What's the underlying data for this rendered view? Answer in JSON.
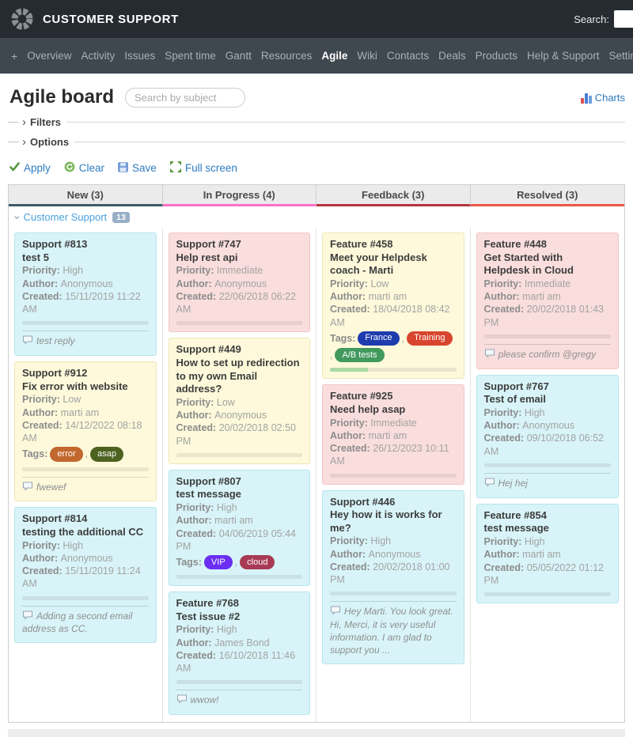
{
  "header": {
    "app_title": "CUSTOMER SUPPORT",
    "search_label": "Search:"
  },
  "nav": {
    "plus_label": "+",
    "active": "Agile",
    "items": [
      "Overview",
      "Activity",
      "Issues",
      "Spent time",
      "Gantt",
      "Resources",
      "Agile",
      "Wiki",
      "Contacts",
      "Deals",
      "Products",
      "Help & Support",
      "Settings"
    ]
  },
  "page": {
    "title": "Agile board",
    "search_placeholder": "Search by subject",
    "charts_label": "Charts",
    "filters_label": "Filters",
    "options_label": "Options"
  },
  "toolbar": {
    "apply_label": "Apply",
    "clear_label": "Clear",
    "save_label": "Save",
    "fullscreen_label": "Full screen"
  },
  "board": {
    "swimlane": {
      "title": "Customer Support",
      "count": "13"
    },
    "field_labels": {
      "priority": "Priority",
      "author": "Author",
      "created": "Created",
      "tags": "Tags"
    },
    "card_colors": {
      "cyan": {
        "bg": "#d8f4f8",
        "border": "#b7e5ec"
      },
      "yellow": {
        "bg": "#fdf9da",
        "border": "#eee6b8"
      },
      "pink": {
        "bg": "#f9dedd",
        "border": "#f0c6c5"
      }
    },
    "columns": [
      {
        "label": "New (3)",
        "accent": "#3f5a66",
        "cards": [
          {
            "id": "Support #813",
            "subject": "test 5",
            "priority": "High",
            "author": "Anonymous",
            "created": "15/11/2019 11:22 AM",
            "color": "cyan",
            "comment": "test reply"
          },
          {
            "id": "Support #912",
            "subject": "Fix error with website",
            "priority": "Low",
            "author": "marti am",
            "created": "14/12/2022 08:18 AM",
            "color": "yellow",
            "tags": [
              {
                "label": "error",
                "color": "#c2672e"
              },
              {
                "label": "asap",
                "color": "#4d6220"
              }
            ],
            "comment": "fwewef"
          },
          {
            "id": "Support #814",
            "subject": "testing the additional CC",
            "priority": "High",
            "author": "Anonymous",
            "created": "15/11/2019 11:24 AM",
            "color": "cyan",
            "comment": "Adding a second email address as CC."
          }
        ]
      },
      {
        "label": "In Progress (4)",
        "accent": "#ff6fc8",
        "cards": [
          {
            "id": "Support #747",
            "subject": "Help rest api",
            "priority": "Immediate",
            "author": "Anonymous",
            "created": "22/06/2018 06:22 AM",
            "color": "pink"
          },
          {
            "id": "Support #449",
            "subject": "How to set up redirection to my own Email address?",
            "priority": "Low",
            "author": "Anonymous",
            "created": "20/02/2018 02:50 PM",
            "color": "yellow"
          },
          {
            "id": "Support #807",
            "subject": "test message",
            "priority": "High",
            "author": "marti am",
            "created": "04/06/2019 05:44 PM",
            "color": "cyan",
            "tags": [
              {
                "label": "VIP",
                "color": "#6a2ff1"
              },
              {
                "label": "cloud",
                "color": "#a83a55"
              }
            ]
          },
          {
            "id": "Feature #768",
            "subject": "Test issue #2",
            "priority": "High",
            "author": "James Bond",
            "created": "16/10/2018 11:46 AM",
            "color": "cyan",
            "comment": "wwow!"
          }
        ]
      },
      {
        "label": "Feedback (3)",
        "accent": "#b43440",
        "cards": [
          {
            "id": "Feature #458",
            "subject": "Meet your Helpdesk coach - Marti",
            "priority": "Low",
            "author": "marti am",
            "created": "18/04/2018 08:42 AM",
            "color": "yellow",
            "tags": [
              {
                "label": "France",
                "color": "#1e3cae"
              },
              {
                "label": "Training",
                "color": "#d8452e"
              },
              {
                "label": "A/B tests",
                "color": "#42995e"
              }
            ],
            "progress": 30
          },
          {
            "id": "Feature #925",
            "subject": "Need help asap",
            "priority": "Immediate",
            "author": "marti am",
            "created": "26/12/2023 10:11 AM",
            "color": "pink"
          },
          {
            "id": "Support #446",
            "subject": "Hey how it is works for me?",
            "priority": "High",
            "author": "Anonymous",
            "created": "20/02/2018 01:00 PM",
            "color": "cyan",
            "comment": "Hey Marti. You look great. Hi, Merci, it is very useful information. I am glad to support you ..."
          }
        ]
      },
      {
        "label": "Resolved (3)",
        "accent": "#e85948",
        "cards": [
          {
            "id": "Feature #448",
            "subject": "Get Started with Helpdesk in Cloud",
            "priority": "Immediate",
            "author": "marti am",
            "created": "20/02/2018 01:43 PM",
            "color": "pink",
            "comment": "please confirm @gregy"
          },
          {
            "id": "Support #767",
            "subject": "Test of email",
            "priority": "High",
            "author": "Anonymous",
            "created": "09/10/2018 06:52 AM",
            "color": "cyan",
            "comment": "Hej hej"
          },
          {
            "id": "Feature #854",
            "subject": "test message",
            "priority": "High",
            "author": "marti am",
            "created": "05/05/2022 01:12 PM",
            "color": "cyan"
          }
        ]
      }
    ]
  }
}
